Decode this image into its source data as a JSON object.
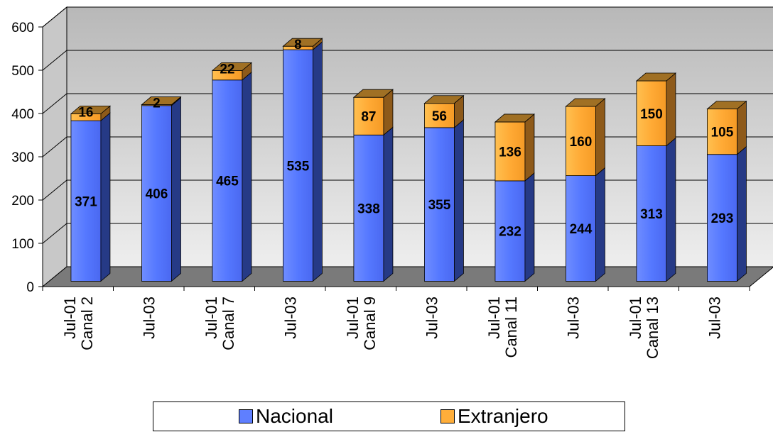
{
  "chart_data": {
    "type": "bar",
    "stacked": true,
    "three_d": true,
    "categories": [
      {
        "line1": "Jul-01",
        "line2": "Canal 2"
      },
      {
        "line1": "Jul-03",
        "line2": ""
      },
      {
        "line1": "Jul-01",
        "line2": "Canal 7"
      },
      {
        "line1": "Jul-03",
        "line2": ""
      },
      {
        "line1": "Jul-01",
        "line2": "Canal 9"
      },
      {
        "line1": "Jul-03",
        "line2": ""
      },
      {
        "line1": "Jul-01",
        "line2": "Canal 11"
      },
      {
        "line1": "Jul-03",
        "line2": ""
      },
      {
        "line1": "Jul-01",
        "line2": "Canal 13"
      },
      {
        "line1": "Jul-03",
        "line2": ""
      }
    ],
    "series": [
      {
        "name": "Nacional",
        "values": [
          371,
          406,
          465,
          535,
          338,
          355,
          232,
          244,
          313,
          293
        ]
      },
      {
        "name": "Extranjero",
        "values": [
          16,
          2,
          22,
          8,
          87,
          56,
          136,
          160,
          150,
          105
        ]
      }
    ],
    "ylim": [
      0,
      600
    ],
    "yticks": [
      "0",
      "100",
      "200",
      "300",
      "400",
      "500",
      "600"
    ],
    "grid": true,
    "legend_position": "bottom",
    "colors": {
      "Nacional": {
        "front": "#5F7FFF",
        "side": "#263A86",
        "top": "#5A75F0"
      },
      "Extranjero": {
        "front": "#FFAE3A",
        "side": "#8E5A1A",
        "top": "#A07024"
      },
      "wall": "#D4D4D4",
      "floor": "#7A7A7A"
    }
  }
}
